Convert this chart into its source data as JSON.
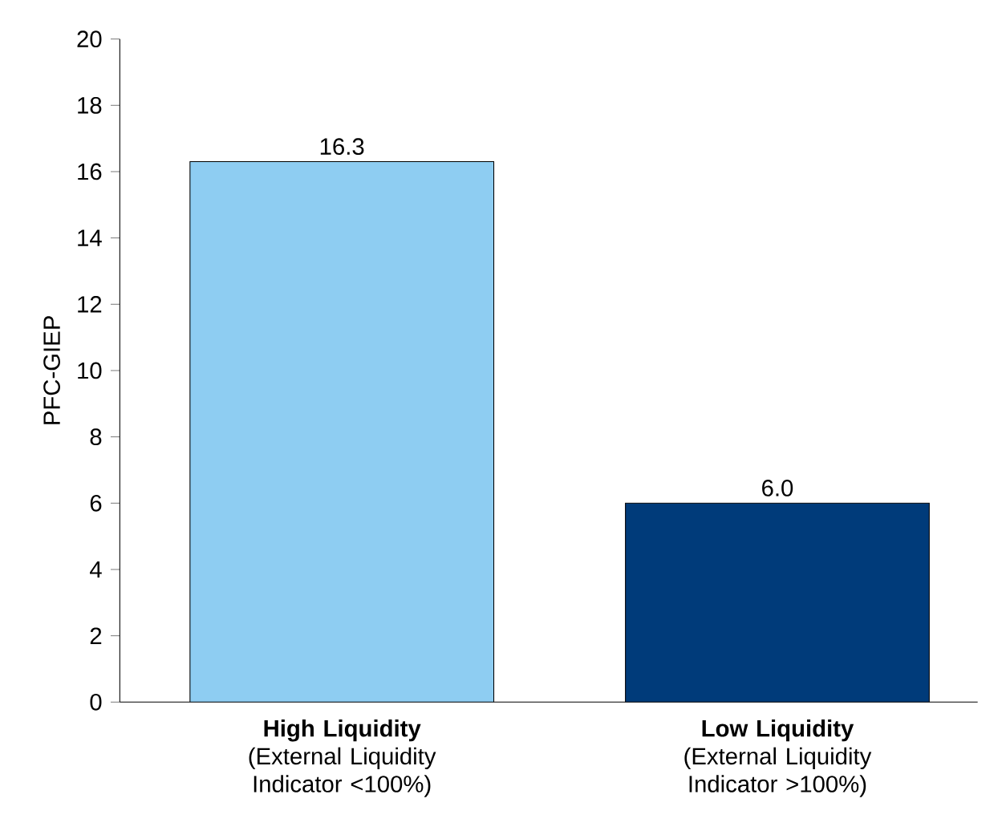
{
  "chart_data": {
    "type": "bar",
    "ylabel": "PFC-GIEP",
    "categories": [
      "**High Liquidity** (External Liquidity Indicator <100%)",
      "**Low Liquidity** (External Liquidity Indicator >100%)"
    ],
    "values": [
      16.3,
      6.0
    ],
    "colors": [
      "#8ecdf2",
      "#003b7a"
    ],
    "value_labels": [
      "16.3",
      "6.0"
    ],
    "ylim": [
      0,
      20
    ],
    "yticks": [
      0,
      2,
      4,
      6,
      8,
      10,
      12,
      14,
      16,
      18,
      20
    ],
    "grid": false
  }
}
